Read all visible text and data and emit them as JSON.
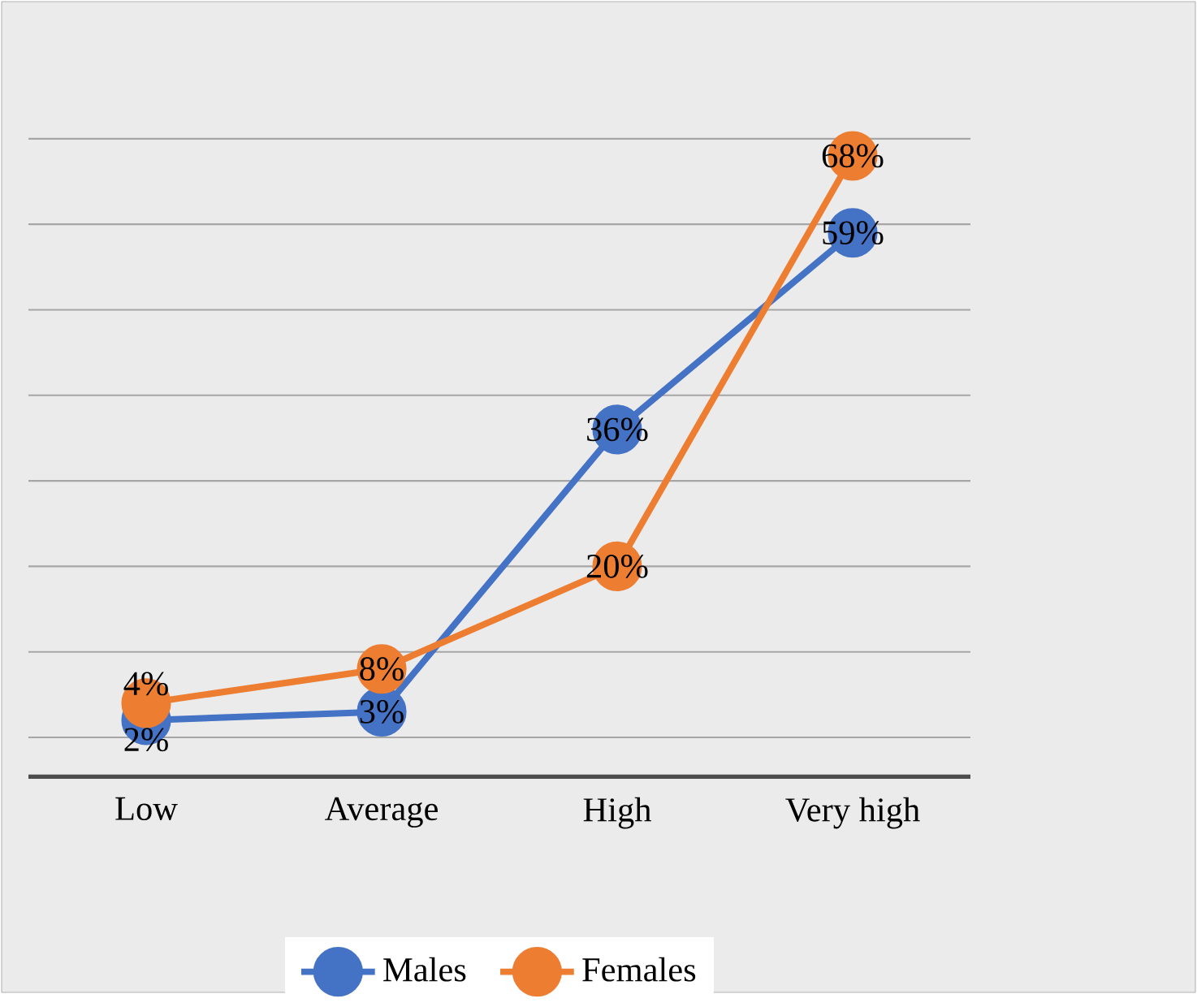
{
  "chart_data": {
    "type": "line",
    "categories": [
      "Low",
      "Average",
      "High",
      "Very high"
    ],
    "series": [
      {
        "name": "Males",
        "color": "#4472c4",
        "values": [
          2,
          3,
          36,
          59
        ],
        "value_labels": [
          "2%",
          "3%",
          "36%",
          "59%"
        ]
      },
      {
        "name": "Females",
        "color": "#ed7d31",
        "values": [
          4,
          8,
          20,
          68
        ],
        "value_labels": [
          "4%",
          "8%",
          "20%",
          "68%"
        ]
      }
    ],
    "tick_labels": "x",
    "grid": "y",
    "legend": "bottom",
    "marker": "circle",
    "line_style": "solid"
  }
}
